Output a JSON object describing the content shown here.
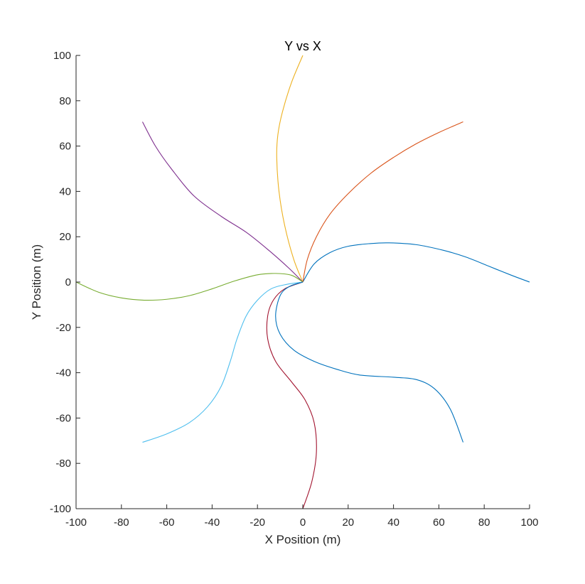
{
  "chart_data": {
    "type": "line",
    "title": "Y vs X",
    "xlabel": "X Position (m)",
    "ylabel": "Y Position (m)",
    "xlim": [
      -100,
      100
    ],
    "ylim": [
      -100,
      100
    ],
    "xticks": [
      "-100",
      "-80",
      "-60",
      "-40",
      "-20",
      "0",
      "20",
      "40",
      "60",
      "80",
      "100"
    ],
    "yticks": [
      "100",
      "80",
      "60",
      "40",
      "20",
      "0",
      "-20",
      "-40",
      "-60",
      "-80",
      "-100"
    ],
    "grid": false,
    "legend": "none",
    "series": [
      {
        "color": "#0072BD",
        "x": [
          0,
          5,
          12,
          20,
          30,
          38,
          50,
          62,
          72,
          82,
          92,
          100
        ],
        "y": [
          0,
          8,
          13,
          15.8,
          17,
          17.3,
          16.5,
          14,
          11,
          7,
          3,
          0
        ]
      },
      {
        "color": "#D95319",
        "x": [
          0,
          2,
          6,
          12,
          20,
          30,
          40,
          50,
          60,
          70.7
        ],
        "y": [
          0,
          10,
          20,
          30,
          39,
          48,
          55,
          61,
          66,
          70.7
        ]
      },
      {
        "color": "#EDB120",
        "x": [
          0,
          -4,
          -8,
          -10.5,
          -11.5,
          -11,
          -9,
          -5,
          0
        ],
        "y": [
          0,
          10,
          25,
          40,
          55,
          65,
          75,
          88,
          100
        ]
      },
      {
        "color": "#7E2F8E",
        "x": [
          0,
          -6,
          -15,
          -25,
          -36,
          -48,
          -58,
          -65,
          -70.7
        ],
        "y": [
          0,
          6,
          14,
          22,
          29,
          38,
          50,
          60,
          70.7
        ]
      },
      {
        "color": "#77AC30",
        "x": [
          0,
          -5,
          -12,
          -20,
          -30,
          -40,
          -50,
          -60,
          -70,
          -80,
          -90,
          -100
        ],
        "y": [
          0,
          3,
          3.8,
          3.2,
          0.5,
          -3,
          -6,
          -7.6,
          -8,
          -7,
          -4.5,
          0
        ]
      },
      {
        "color": "#4DBEEE",
        "x": [
          0,
          -7,
          -14,
          -20,
          -25,
          -29,
          -32,
          -36,
          -42,
          -50,
          -60,
          -70.7
        ],
        "y": [
          0,
          -1,
          -3,
          -8,
          -15,
          -25,
          -35,
          -46,
          -55,
          -62,
          -67,
          -70.7
        ]
      },
      {
        "color": "#A2142F",
        "x": [
          0,
          -8,
          -13,
          -15.5,
          -15.5,
          -12,
          -5,
          1,
          5,
          6,
          4,
          0
        ],
        "y": [
          0,
          -3,
          -8,
          -15,
          -25,
          -35,
          -44,
          -52,
          -62,
          -75,
          -88,
          -100
        ]
      },
      {
        "color": "#0072BD",
        "x": [
          0,
          -6,
          -10,
          -12,
          -10,
          -4,
          5,
          15,
          25,
          40,
          50,
          58,
          65,
          70.7
        ],
        "y": [
          0,
          -2,
          -6,
          -15,
          -23,
          -30,
          -35,
          -38.5,
          -41,
          -42,
          -43,
          -47,
          -56,
          -70.7
        ]
      }
    ]
  }
}
